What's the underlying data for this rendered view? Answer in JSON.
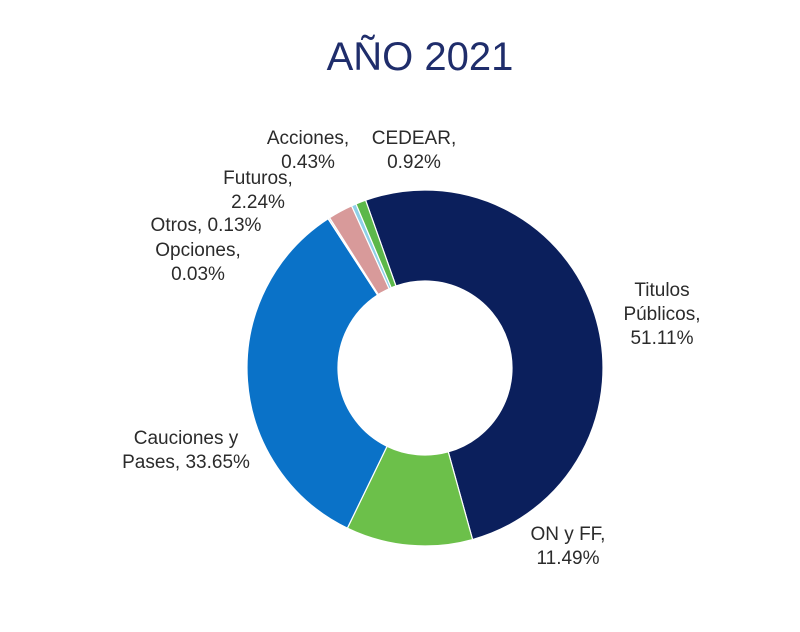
{
  "chart_data": {
    "type": "pie",
    "title": "AÑO 2021",
    "slices": [
      {
        "label_lines": [
          "Titulos",
          "Públicos,",
          "51.11%"
        ],
        "name": "Titulos Públicos",
        "value": 51.11,
        "color": "#0b1f5c"
      },
      {
        "label_lines": [
          "ON y FF,",
          "11.49%"
        ],
        "name": "ON y FF",
        "value": 11.49,
        "color": "#6cc04a"
      },
      {
        "label_lines": [
          "Cauciones y",
          "Pases, 33.65%"
        ],
        "name": "Cauciones y Pases",
        "value": 33.65,
        "color": "#0a72c8"
      },
      {
        "label_lines": [
          "Opciones,",
          "0.03%"
        ],
        "name": "Opciones",
        "value": 0.03,
        "color": "#e8a33a"
      },
      {
        "label_lines": [
          "Otros, 0.13%"
        ],
        "name": "Otros",
        "value": 0.13,
        "color": "#9a9a9a"
      },
      {
        "label_lines": [
          "Futuros,",
          "2.24%"
        ],
        "name": "Futuros",
        "value": 2.24,
        "color": "#d89a9a"
      },
      {
        "label_lines": [
          "Acciones,",
          "0.43%"
        ],
        "name": "Acciones",
        "value": 0.43,
        "color": "#8fd0e8"
      },
      {
        "label_lines": [
          "CEDEAR,",
          "0.92%"
        ],
        "name": "CEDEAR",
        "value": 0.92,
        "color": "#5cb84a"
      }
    ]
  }
}
